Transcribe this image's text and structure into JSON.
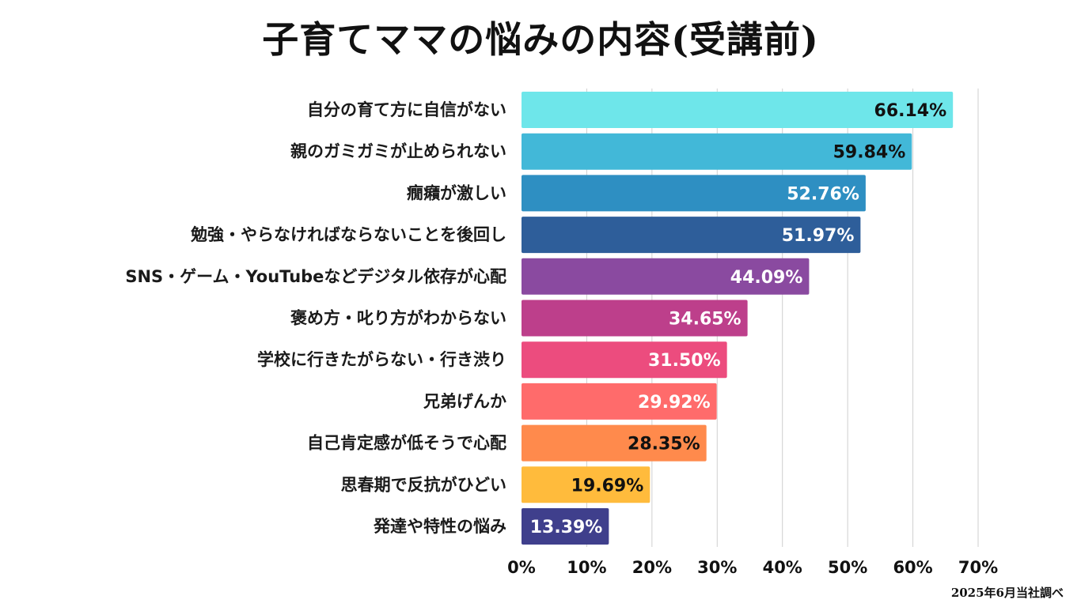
{
  "chart_data": {
    "type": "bar",
    "orientation": "horizontal",
    "title": "子育てママの悩みの内容(受講前)",
    "categories": [
      "自分の育て方に自信がない",
      "親のガミガミが止められない",
      "癇癪が激しい",
      "勉強・やらなければならないことを後回し",
      "SNS・ゲーム・YouTubeなどデジタル依存が心配",
      "褒め方・叱り方がわからない",
      "学校に行きたがらない・行き渋り",
      "兄弟げんか",
      "自己肯定感が低そうで心配",
      "思春期で反抗がひどい",
      "発達や特性の悩み"
    ],
    "values": [
      66.14,
      59.84,
      52.76,
      51.97,
      44.09,
      34.65,
      31.5,
      29.92,
      28.35,
      19.69,
      13.39
    ],
    "value_labels": [
      "66.14%",
      "59.84%",
      "52.76%",
      "51.97%",
      "44.09%",
      "34.65%",
      "31.50%",
      "29.92%",
      "28.35%",
      "19.69%",
      "13.39%"
    ],
    "colors": [
      "#6ee6ea",
      "#42b8d8",
      "#2e8fc2",
      "#2e5e9a",
      "#8a4aa0",
      "#bd3f8b",
      "#ec4c7e",
      "#ff6b6b",
      "#ff8a4c",
      "#ffbb3c",
      "#3f3f8c"
    ],
    "label_colors": [
      "#111111",
      "#111111",
      "#ffffff",
      "#ffffff",
      "#ffffff",
      "#ffffff",
      "#ffffff",
      "#ffffff",
      "#111111",
      "#111111",
      "#ffffff"
    ],
    "xlim": [
      0,
      70
    ],
    "x_ticks": [
      0,
      10,
      20,
      30,
      40,
      50,
      60,
      70
    ],
    "x_tick_labels": [
      "0%",
      "10%",
      "20%",
      "30%",
      "40%",
      "50%",
      "60%",
      "70%"
    ],
    "grid": true,
    "xlabel": "",
    "ylabel": ""
  },
  "source_note": "2025年6月当社調べ"
}
